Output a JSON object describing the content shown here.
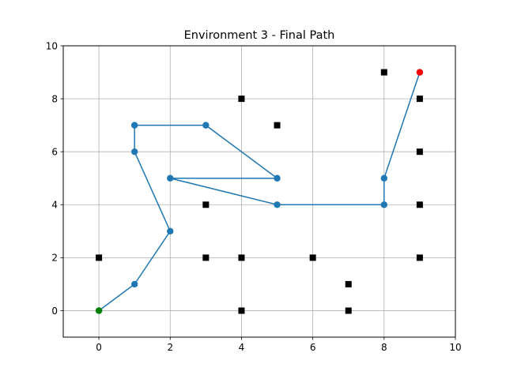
{
  "chart_data": {
    "type": "scatter",
    "title": "Environment 3 - Final Path",
    "xlabel": "",
    "ylabel": "",
    "xlim": [
      -1,
      10
    ],
    "ylim": [
      -1,
      10
    ],
    "xticks": [
      0,
      2,
      4,
      6,
      8,
      10
    ],
    "yticks": [
      0,
      2,
      4,
      6,
      8,
      10
    ],
    "grid": true,
    "colors": {
      "path": "#1f77b4",
      "obstacle": "#000000",
      "start": "#008000",
      "goal": "#ff0000",
      "grid": "#b0b0b0"
    },
    "path": [
      [
        0,
        0
      ],
      [
        1,
        1
      ],
      [
        2,
        3
      ],
      [
        1,
        6
      ],
      [
        1,
        7
      ],
      [
        3,
        7
      ],
      [
        5,
        5
      ],
      [
        2,
        5
      ],
      [
        5,
        4
      ],
      [
        8,
        4
      ],
      [
        8,
        5
      ],
      [
        9,
        9
      ]
    ],
    "obstacles": [
      [
        0,
        2
      ],
      [
        3,
        2
      ],
      [
        4,
        2
      ],
      [
        6,
        2
      ],
      [
        9,
        2
      ],
      [
        7,
        1
      ],
      [
        4,
        0
      ],
      [
        7,
        0
      ],
      [
        3,
        4
      ],
      [
        9,
        4
      ],
      [
        9,
        6
      ],
      [
        5,
        7
      ],
      [
        4,
        8
      ],
      [
        9,
        8
      ],
      [
        8,
        9
      ]
    ],
    "start": [
      0,
      0
    ],
    "goal": [
      9,
      9
    ]
  }
}
